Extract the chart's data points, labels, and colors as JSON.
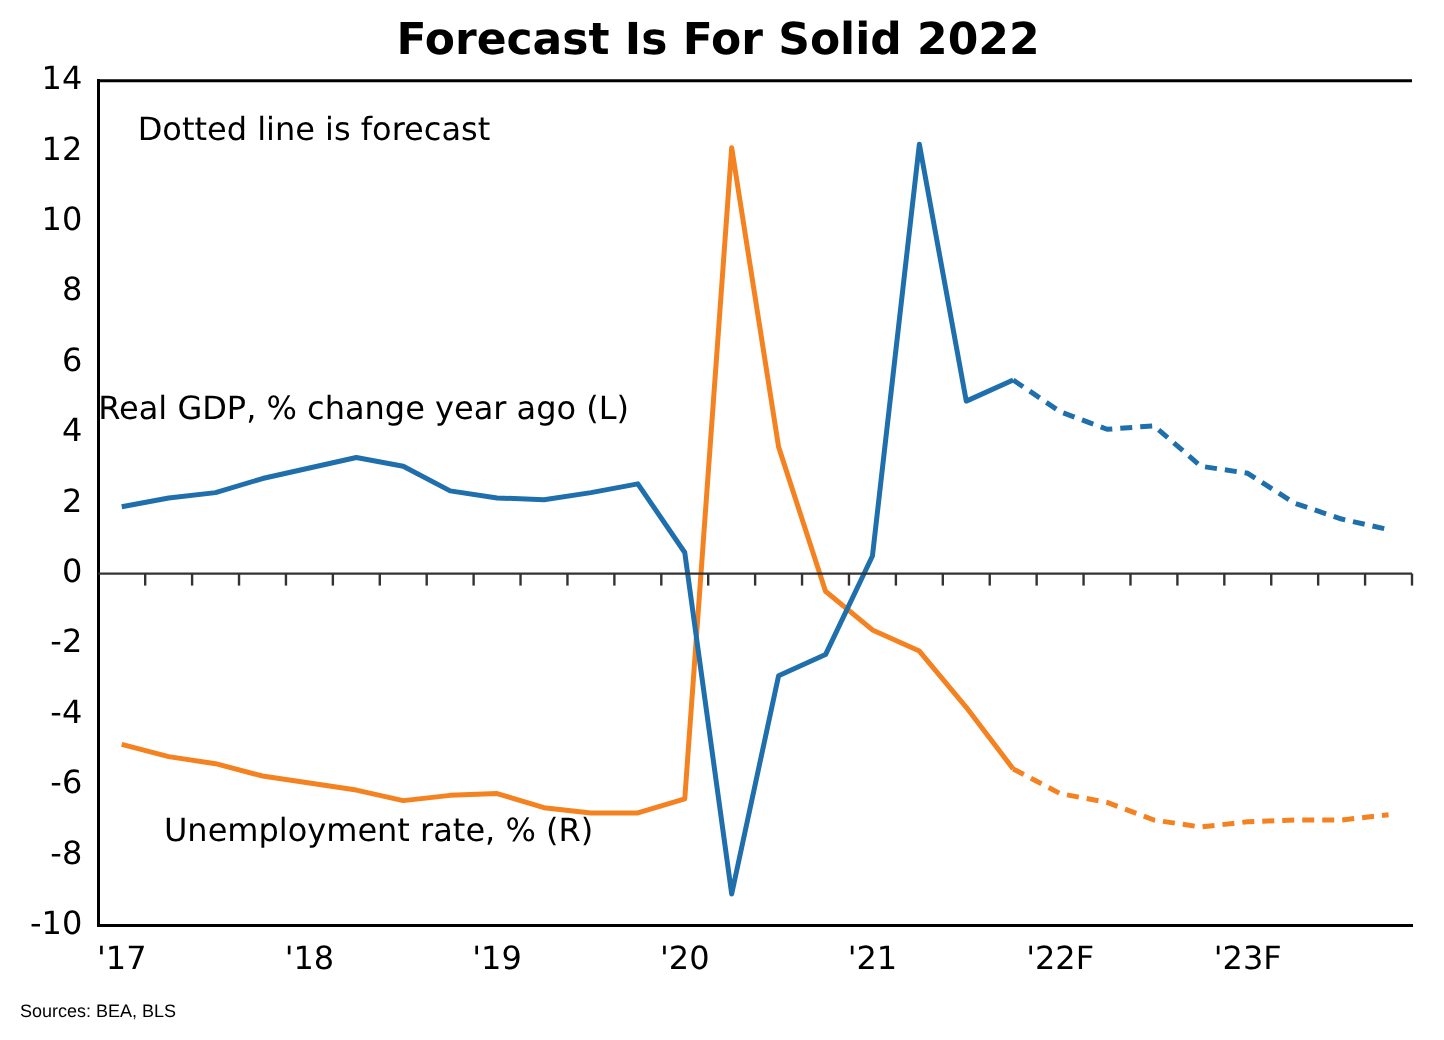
{
  "chart_data": {
    "type": "line",
    "title": "Forecast Is For Solid 2022",
    "categories": [
      "'17",
      null,
      null,
      null,
      "'18",
      null,
      null,
      null,
      "'19",
      null,
      null,
      null,
      "'20",
      null,
      null,
      null,
      "'21",
      null,
      null,
      null,
      "'22F",
      null,
      null,
      null,
      "'23F",
      null,
      null,
      null
    ],
    "series": [
      {
        "color": "#1f6fad",
        "line_style": "solid",
        "values": [
          1.9,
          2.15,
          2.3,
          2.7,
          3.0,
          3.3,
          3.05,
          2.35,
          2.15,
          2.1,
          2.3,
          2.55,
          0.6,
          -9.1,
          -2.9,
          -2.3,
          0.5,
          12.2,
          4.9,
          5.5,
          null,
          null,
          null,
          null,
          null,
          null,
          null,
          null
        ]
      },
      {
        "color": "#1f6fad",
        "line_style": "dashed",
        "values": [
          null,
          null,
          null,
          null,
          null,
          null,
          null,
          null,
          null,
          null,
          null,
          null,
          null,
          null,
          null,
          null,
          null,
          null,
          null,
          5.5,
          4.6,
          4.1,
          4.2,
          3.05,
          2.85,
          2.0,
          1.55,
          1.25
        ]
      },
      {
        "color": "#f58220",
        "line_style": "solid",
        "values": [
          -4.85,
          -5.2,
          -5.4,
          -5.75,
          -5.95,
          -6.15,
          -6.45,
          -6.3,
          -6.25,
          -6.65,
          -6.8,
          -6.8,
          -6.4,
          12.1,
          3.6,
          -0.5,
          -1.6,
          -2.2,
          -3.8,
          -5.55,
          null,
          null,
          null,
          null,
          null,
          null,
          null,
          null
        ]
      },
      {
        "color": "#f58220",
        "line_style": "dashed",
        "values": [
          null,
          null,
          null,
          null,
          null,
          null,
          null,
          null,
          null,
          null,
          null,
          null,
          null,
          null,
          null,
          null,
          null,
          null,
          null,
          -5.55,
          -6.25,
          -6.5,
          -7.0,
          -7.2,
          -7.05,
          -7.0,
          -7.0,
          -6.85
        ]
      }
    ],
    "ylim": [
      -10,
      14
    ],
    "yticks": [
      -10,
      -8,
      -6,
      -4,
      -2,
      0,
      2,
      4,
      6,
      8,
      10,
      12,
      14
    ],
    "ref_lines": [
      {
        "axis": "y",
        "value": 0
      }
    ],
    "annotations": [
      "Dotted line is forecast",
      "Real GDP, % change year ago (L)",
      "Unemployment rate, % (R)",
      "Sources: BEA, BLS"
    ],
    "grid": false,
    "legend": false,
    "marker": "none"
  }
}
